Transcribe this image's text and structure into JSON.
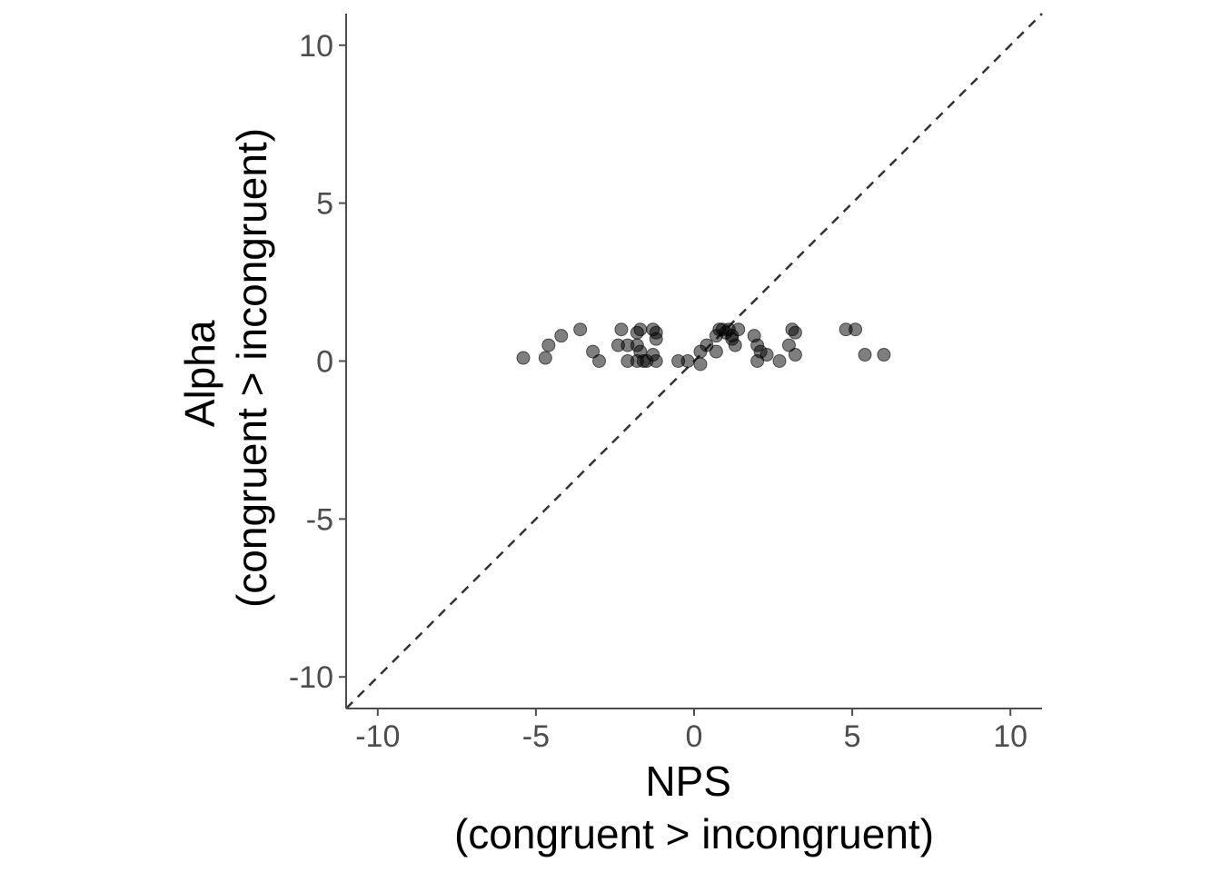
{
  "chart_data": {
    "type": "scatter",
    "xlabel_lines": [
      "NPS",
      "(congruent > incongruent)"
    ],
    "ylabel_lines": [
      "Alpha",
      "(congruent > incongruent)"
    ],
    "xlim": [
      -11,
      11
    ],
    "ylim": [
      -11,
      11
    ],
    "x_ticks": [
      -10,
      -5,
      0,
      5,
      10
    ],
    "y_ticks": [
      -10,
      -5,
      0,
      5,
      10
    ],
    "x_tick_labels": [
      "-10",
      "-5",
      "0",
      "5",
      "10"
    ],
    "y_tick_labels": [
      "-10",
      "-5",
      "0",
      "5",
      "10"
    ],
    "reference_line": {
      "style": "dashed",
      "slope": 1,
      "intercept": 0,
      "color": "#333333"
    },
    "grid": false,
    "point_color": "#000000",
    "point_opacity": 0.5,
    "points": [
      {
        "x": -5.4,
        "y": 0.1
      },
      {
        "x": -4.7,
        "y": 0.1
      },
      {
        "x": -4.6,
        "y": 0.5
      },
      {
        "x": -4.2,
        "y": 0.8
      },
      {
        "x": -3.6,
        "y": 1.0
      },
      {
        "x": -3.2,
        "y": 0.3
      },
      {
        "x": -3.0,
        "y": 0.0
      },
      {
        "x": -2.3,
        "y": 1.0
      },
      {
        "x": -2.4,
        "y": 0.5
      },
      {
        "x": -2.1,
        "y": 0.5
      },
      {
        "x": -2.1,
        "y": 0.0
      },
      {
        "x": -1.8,
        "y": 0.9
      },
      {
        "x": -1.8,
        "y": 0.5
      },
      {
        "x": -1.7,
        "y": 0.3
      },
      {
        "x": -1.8,
        "y": 0.0
      },
      {
        "x": -1.6,
        "y": 0.0
      },
      {
        "x": -1.5,
        "y": 0.0
      },
      {
        "x": -1.7,
        "y": 1.0
      },
      {
        "x": -1.3,
        "y": 1.0
      },
      {
        "x": -1.2,
        "y": 0.9
      },
      {
        "x": -1.2,
        "y": 0.7
      },
      {
        "x": -1.3,
        "y": 0.2
      },
      {
        "x": -1.2,
        "y": 0.0
      },
      {
        "x": -0.5,
        "y": 0.0
      },
      {
        "x": -0.2,
        "y": 0.0
      },
      {
        "x": 0.2,
        "y": 0.3
      },
      {
        "x": 0.4,
        "y": 0.5
      },
      {
        "x": 0.7,
        "y": 0.8
      },
      {
        "x": 0.8,
        "y": 1.0
      },
      {
        "x": 0.9,
        "y": 1.0
      },
      {
        "x": 1.0,
        "y": 0.9
      },
      {
        "x": 0.7,
        "y": 0.3
      },
      {
        "x": 0.2,
        "y": -0.1
      },
      {
        "x": 1.1,
        "y": 1.0
      },
      {
        "x": 1.2,
        "y": 0.7
      },
      {
        "x": 1.4,
        "y": 1.0
      },
      {
        "x": 1.3,
        "y": 0.5
      },
      {
        "x": 1.2,
        "y": 0.8
      },
      {
        "x": 1.9,
        "y": 0.8
      },
      {
        "x": 2.0,
        "y": 0.5
      },
      {
        "x": 2.1,
        "y": 0.3
      },
      {
        "x": 2.0,
        "y": 0.0
      },
      {
        "x": 2.3,
        "y": 0.2
      },
      {
        "x": 2.7,
        "y": 0.0
      },
      {
        "x": 3.1,
        "y": 1.0
      },
      {
        "x": 3.2,
        "y": 0.9
      },
      {
        "x": 3.0,
        "y": 0.5
      },
      {
        "x": 3.2,
        "y": 0.2
      },
      {
        "x": 4.8,
        "y": 1.0
      },
      {
        "x": 5.1,
        "y": 1.0
      },
      {
        "x": 5.4,
        "y": 0.2
      },
      {
        "x": 6.0,
        "y": 0.2
      }
    ]
  }
}
